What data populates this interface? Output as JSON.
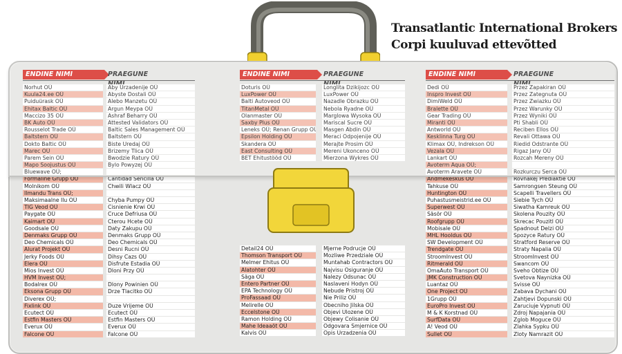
{
  "title": "Transatlantic International Brokers Corpi kuuluvad ettevõtted",
  "headers": {
    "old": "ENDINE NIMI",
    "new": "PRAEGUNE NIMI"
  },
  "colors": {
    "header_red": "#d8312b",
    "row_pink": "#f3b9a8",
    "lock_yellow": "#f2d63a",
    "handle_gray": "#6e6e66"
  },
  "icons": {
    "handle": "briefcase-handle-icon",
    "lock": "briefcase-lock-icon"
  },
  "columns": [
    {
      "block1": [
        {
          "old": "Norhut OÜ",
          "new": "Aby Urzadenije OÜ"
        },
        {
          "old": "Kuula24.ee OÜ",
          "new": "Abyste Dostali OÜ"
        },
        {
          "old": "Puiduürask OÜ",
          "new": "Alebo Manzetu OÜ"
        },
        {
          "old": "Ehitax Baltic OÜ",
          "new": "Argun Meypa OÜ"
        },
        {
          "old": "Maccizo 35 OÜ",
          "new": "Ashraf Beharry OÜ"
        },
        {
          "old": "BK Auto OÜ",
          "new": "Attested Validators OÜ"
        },
        {
          "old": "Rousselot Trade OÜ",
          "new": "Baltic Sales Management OÜ"
        },
        {
          "old": "Baltstern OÜ",
          "new": "Baltstern OÜ"
        },
        {
          "old": "Dokto Baltic OÜ",
          "new": "Biste Uredaj OÜ"
        },
        {
          "old": "Marec OÜ",
          "new": "Brizemy Tlica OÜ"
        },
        {
          "old": "Parem Sein OÜ",
          "new": "Bwodzie Ratury OÜ"
        },
        {
          "old": "Mapo Soojustus OÜ",
          "new": "Bylo Powyzej OÜ"
        },
        {
          "old": "Bluewave OÜ;",
          "new": ""
        },
        {
          "old": "Formaline Grupp OÜ",
          "new": "Cantidad Sencilla OÜ"
        },
        {
          "old": "Molnikom OÜ",
          "new": "Chwili Wlacz OÜ"
        },
        {
          "old": "Ilmandu Trans OÜ;",
          "new": ""
        },
        {
          "old": "Maksimaalne Ilu OÜ",
          "new": "Chyba Pumpy OÜ"
        },
        {
          "old": "TIG Veod OÜ",
          "new": "Cisnienie Krwi OÜ"
        },
        {
          "old": "Paygate OÜ",
          "new": "Cruce Defriusa OÜ"
        },
        {
          "old": "Kaimart OÜ",
          "new": "Cterou Hcete OÜ"
        },
        {
          "old": "Goodsale OÜ",
          "new": "Daty Zakupu OÜ"
        },
        {
          "old": "Denmaks Grupp OÜ",
          "new": "Denmaks Grupp OÜ"
        },
        {
          "old": "Deo Chemicals OÜ",
          "new": "Deo Chemicals OÜ"
        },
        {
          "old": "Alurat Projekt OÜ",
          "new": "Desni Rucni OÜ"
        },
        {
          "old": "Jerky Foods OÜ",
          "new": "Dihsy Cazs OÜ"
        },
        {
          "old": "Elera OÜ",
          "new": "Disfrute Estadia OÜ"
        },
        {
          "old": "Mios Invest OÜ",
          "new": "Dloni Przy OÜ"
        },
        {
          "old": "HVM Invest OÜ;",
          "new": ""
        },
        {
          "old": "Bodalrex OÜ",
          "new": "Dlony Powinien OÜ"
        },
        {
          "old": "Eksona Grupp OÜ",
          "new": "Drze Tlacitko OÜ"
        },
        {
          "old": "Diverex OÜ;",
          "new": ""
        },
        {
          "old": "Fixlink OÜ",
          "new": "Duze Vrijeme OÜ"
        },
        {
          "old": "Ecutect OÜ",
          "new": "Ecutect OÜ"
        },
        {
          "old": "Estfin Masters OÜ",
          "new": "Estfin Masters OÜ"
        },
        {
          "old": "Everux OÜ",
          "new": "Everux OÜ"
        },
        {
          "old": "Falcone OÜ",
          "new": "Falcone OÜ"
        }
      ],
      "block2": []
    },
    {
      "block1": [
        {
          "old": "Doturis OÜ",
          "new": "Longlita Dzikijozc OÜ"
        },
        {
          "old": "LuxPower OÜ",
          "new": "LuxPower OÜ"
        },
        {
          "old": "Balti Autoveod OÜ",
          "new": "Nazadle Obrazku OÜ"
        },
        {
          "old": "TitanMetal OÜ",
          "new": "Nebola Ryadne OÜ"
        },
        {
          "old": "Olanmaster OÜ",
          "new": "Marglowa Wysoka OÜ"
        },
        {
          "old": "Saxby Plus OÜ",
          "new": "Mariscal Sucre OÜ"
        },
        {
          "old": "Leneks OÜ; Renan Grupp OÜ",
          "new": "Masgen Abdin OÜ"
        },
        {
          "old": "Epsilon Holding OÜ",
          "new": "Meraci Odpojenije OÜ"
        },
        {
          "old": "Skandera OÜ",
          "new": "Merajte Prosim OÜ"
        },
        {
          "old": "East Consulting OÜ",
          "new": "Mereni Ukonceno OÜ"
        },
        {
          "old": "BET Ehitustööd OÜ",
          "new": "Mierzona Wykres OÜ"
        }
      ],
      "block2": [
        {
          "old": "Detail24 OÜ",
          "new": "Mjerne Podrucje OÜ"
        },
        {
          "old": "Thomson Transport OÜ",
          "new": "Mozliwe Przedziale OÜ"
        },
        {
          "old": "Melmer Ehitus OÜ",
          "new": "Muntahab Contractors OÜ"
        },
        {
          "old": "Alatohter OÜ",
          "new": "Najvisu Osiguranje OÜ"
        },
        {
          "old": "Säga OÜ",
          "new": "Nalezy Odsunac OÜ"
        },
        {
          "old": "Entero Partner OÜ",
          "new": "Naslaveni Hodyn OÜ"
        },
        {
          "old": "EPA Technology OÜ",
          "new": "Nebude Pristroj OÜ"
        },
        {
          "old": "ProFassaad OÜ",
          "new": "Nie Priliz OÜ"
        },
        {
          "old": "Melirelle OÜ",
          "new": "Obecniho Jilska OÜ"
        },
        {
          "old": "Eccelstone OÜ",
          "new": "Objevi Ulozene OÜ"
        },
        {
          "old": "Ramon Holding OÜ",
          "new": "Objewy Colisanie OÜ"
        },
        {
          "old": "Mahe Ideaaöt OÜ",
          "new": "Odgovara Smjernice OÜ"
        },
        {
          "old": "Kalvis OÜ",
          "new": "Opis Urzadzenia OÜ"
        }
      ]
    },
    {
      "block1": [
        {
          "old": "Dedi OÜ",
          "new": "Przez Zapakiran OÜ"
        },
        {
          "old": "Inspro Invest OÜ",
          "new": "Przez Zategnuta OÜ"
        },
        {
          "old": "DimiWeld OÜ",
          "new": "Przez Zwiazku OÜ"
        },
        {
          "old": "Bralette OÜ",
          "new": "Przez Warunky OÜ"
        },
        {
          "old": "Gear Trading OÜ",
          "new": "Przez Wyniki OÜ"
        },
        {
          "old": "Miranti OÜ",
          "new": "Pti Shabli OÜ"
        },
        {
          "old": "Antworld OÜ",
          "new": "Reciben Ellos OÜ"
        },
        {
          "old": "Kesklinna Turg OÜ",
          "new": "Revali Ottawa OÜ"
        },
        {
          "old": "Klimax OÜ, Indrekson OÜ",
          "new": "Riedid Odstrante OÜ"
        },
        {
          "old": "Vezala OÜ",
          "new": "Rigaz Jany OÜ"
        },
        {
          "old": "Lankart OÜ",
          "new": "Rozcah Mereny OÜ"
        },
        {
          "old": "Avoterm Aqua OÜ;",
          "new": ""
        },
        {
          "old": "Avoterm Aravete OÜ",
          "new": "Rozkurczu Serca OÜ"
        },
        {
          "old": "Andmekeskus OÜ",
          "new": "Rovnakej Prediaktie OÜ"
        },
        {
          "old": "Tahkuse OÜ",
          "new": "Samrongsen Steung OÜ"
        },
        {
          "old": "Huntington OÜ",
          "new": "Scapelli Travellers OÜ"
        },
        {
          "old": "Puhastusmeistrid.ee OÜ",
          "new": "Siebie Tych OÜ"
        },
        {
          "old": "Superwest OÜ",
          "new": "Siwatha Kamreuk OÜ"
        },
        {
          "old": "Säsör OÜ",
          "new": "Skolena Pouzity OÜ"
        },
        {
          "old": "Roofgrupp OÜ",
          "new": "Skrecac Pouzitl OÜ"
        },
        {
          "old": "Mobisale OÜ",
          "new": "Spadnout Delzi OÜ"
        },
        {
          "old": "MHL Hooldus OÜ",
          "new": "Spozyce Ratury OÜ"
        },
        {
          "old": "SW Development OÜ",
          "new": "Stratford Reserve OÜ"
        },
        {
          "old": "Trendgate OÜ",
          "new": "Straty Napalia OÜ"
        },
        {
          "old": "StroomInvest OÜ",
          "new": "StroomInvest OÜ"
        },
        {
          "old": "Ritmerald OÜ",
          "new": "Swancom OÜ"
        },
        {
          "old": "OmaAuto Transport OÜ",
          "new": "Sveho Obtize OÜ"
        },
        {
          "old": "JMK Construction OÜ",
          "new": "Svetova Naynizka OÜ"
        },
        {
          "old": "Luantaz OÜ",
          "new": "Svisse OÜ"
        },
        {
          "old": "One Project OÜ",
          "new": "Zabava Dychani OÜ"
        },
        {
          "old": "1Grupp OÜ",
          "new": "Zahtjevi Dopunski OÜ"
        },
        {
          "old": "EuroPro Invest OÜ",
          "new": "Zaruciuje Vypnuti OÜ"
        },
        {
          "old": "M & K Korstnad OÜ",
          "new": "Zdroj Napajania OÜ"
        },
        {
          "old": "SurfData OÜ",
          "new": "Zglob Moguce OÜ"
        },
        {
          "old": "A! Veod OÜ",
          "new": "Zlahka Sypku OÜ"
        },
        {
          "old": "Sullet OÜ",
          "new": "Zloty Namrazit OÜ"
        }
      ],
      "block2": []
    }
  ]
}
